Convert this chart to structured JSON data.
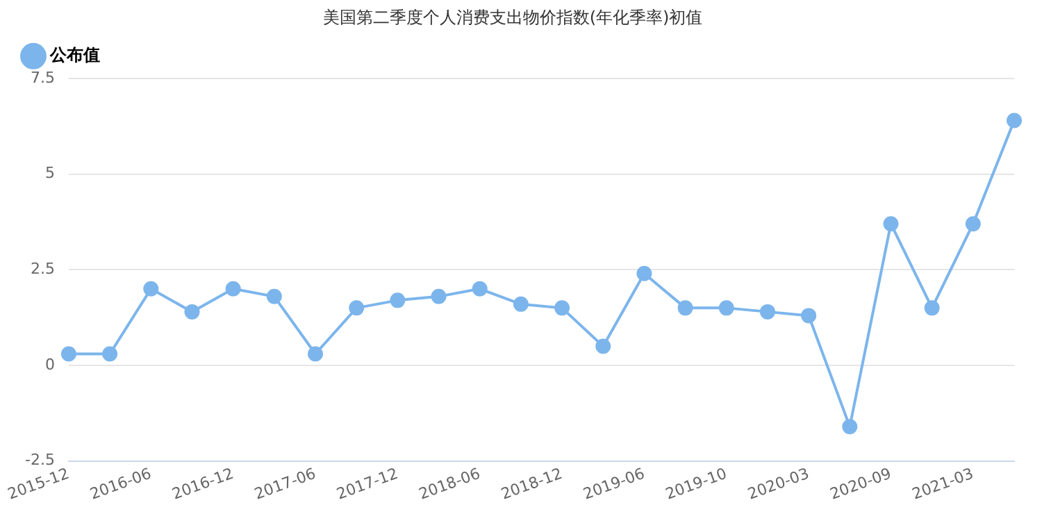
{
  "chart_data": {
    "type": "line",
    "title": "美国第二季度个人消费支出物价指数(年化季率)初值",
    "categories": [
      "2015-12",
      null,
      "2016-06",
      null,
      "2016-12",
      null,
      "2017-06",
      null,
      "2017-12",
      null,
      "2018-06",
      null,
      "2018-12",
      null,
      "2019-06",
      null,
      "2019-10",
      null,
      "2020-03",
      null,
      "2020-09",
      null,
      "2021-03",
      null
    ],
    "series": [
      {
        "name": "公布值",
        "color": "#7cb5ec",
        "values": [
          0.3,
          0.3,
          2.0,
          1.4,
          2.0,
          1.8,
          0.3,
          1.5,
          1.7,
          1.8,
          2.0,
          1.6,
          1.5,
          0.5,
          2.4,
          1.5,
          1.5,
          1.4,
          1.3,
          -1.6,
          3.7,
          1.5,
          3.7,
          6.4
        ]
      }
    ],
    "ylim": [
      -2.5,
      7.5
    ],
    "yticks": [
      -2.5,
      0,
      2.5,
      5,
      7.5
    ],
    "grid": "y",
    "legend": "top left",
    "marker": "circle",
    "line_style": "solid"
  }
}
